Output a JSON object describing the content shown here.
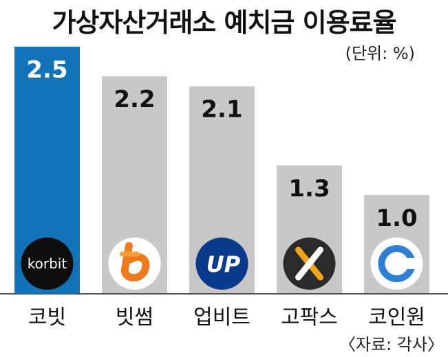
{
  "chart_data": {
    "type": "bar",
    "title": "가상자산거래소 예치금 이용료율",
    "unit": "(단위: %)",
    "source": "〈자료: 각사〉",
    "categories": [
      "코빗",
      "빗썸",
      "업비트",
      "고팍스",
      "코인원"
    ],
    "values": [
      2.5,
      2.2,
      2.1,
      1.3,
      1.0
    ],
    "value_labels": [
      "2.5",
      "2.2",
      "2.1",
      "1.3",
      "1.0"
    ],
    "highlight_index": 0,
    "colors": {
      "highlight": "#1273b8",
      "default": "#c8c8c8",
      "highlight_text": "#ffffff",
      "default_text": "#111111"
    },
    "logos": [
      {
        "name": "korbit-logo",
        "text": "korbit"
      },
      {
        "name": "bithumb-logo",
        "text": ""
      },
      {
        "name": "upbit-logo",
        "text": "UP"
      },
      {
        "name": "gopax-logo",
        "text": ""
      },
      {
        "name": "coinone-logo",
        "text": ""
      }
    ]
  }
}
